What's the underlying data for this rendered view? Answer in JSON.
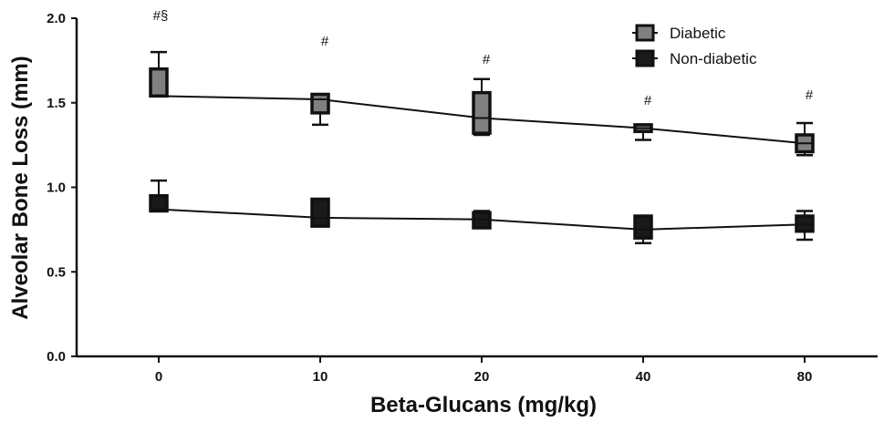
{
  "chart_data": {
    "type": "line",
    "title": "",
    "xlabel": "Beta-Glucans (mg/kg)",
    "ylabel": "Alveolar Bone Loss (mm)",
    "categories": [
      "0",
      "10",
      "20",
      "40",
      "80"
    ],
    "ylim": [
      0.0,
      2.0
    ],
    "yticks": [
      "0.0",
      "0.5",
      "1.0",
      "1.5",
      "2.0"
    ],
    "grid": false,
    "legend_position": "top-right",
    "annotations": [
      "#§",
      "#",
      "#",
      "#",
      "#"
    ],
    "series": [
      {
        "name": "Diabetic",
        "color": "#808080",
        "median": [
          1.54,
          1.52,
          1.41,
          1.35,
          1.26
        ],
        "q1": [
          1.54,
          1.44,
          1.32,
          1.33,
          1.21
        ],
        "q3": [
          1.7,
          1.55,
          1.56,
          1.37,
          1.31
        ],
        "min": [
          1.54,
          1.37,
          1.31,
          1.28,
          1.19
        ],
        "max": [
          1.8,
          1.55,
          1.64,
          1.37,
          1.38
        ]
      },
      {
        "name": "Non-diabetic",
        "color": "#1a1a1a",
        "median": [
          0.87,
          0.82,
          0.81,
          0.75,
          0.78
        ],
        "q1": [
          0.86,
          0.77,
          0.76,
          0.7,
          0.74
        ],
        "q3": [
          0.95,
          0.93,
          0.85,
          0.83,
          0.83
        ],
        "min": [
          0.86,
          0.77,
          0.76,
          0.67,
          0.69
        ],
        "max": [
          1.04,
          0.93,
          0.86,
          0.83,
          0.86
        ]
      }
    ]
  }
}
